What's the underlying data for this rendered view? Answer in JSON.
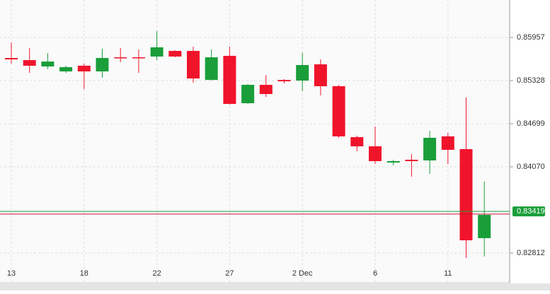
{
  "chart_data": {
    "type": "candlestick",
    "categories": [
      "13",
      null,
      null,
      null,
      "18",
      null,
      null,
      null,
      "22",
      null,
      null,
      null,
      "27",
      null,
      null,
      null,
      "2 Dec",
      null,
      null,
      null,
      "6",
      null,
      null,
      null,
      "11",
      null,
      null
    ],
    "open": [
      0.85658,
      0.85627,
      0.85534,
      0.85462,
      0.85545,
      0.85462,
      0.85668,
      0.85668,
      0.85679,
      0.85761,
      0.85761,
      0.85338,
      0.85689,
      0.84998,
      0.85266,
      0.85338,
      0.85328,
      0.85565,
      0.85246,
      0.84503,
      0.84369,
      0.84132,
      0.84173,
      0.84163,
      0.84514,
      0.84328,
      0.83029
    ],
    "high": [
      0.85885,
      0.85802,
      0.8573,
      0.85545,
      0.85576,
      0.85792,
      0.85802,
      0.85782,
      0.8605,
      0.85771,
      0.85823,
      0.85782,
      0.85823,
      0.85276,
      0.8541,
      0.85349,
      0.8573,
      0.85637,
      0.85266,
      0.84524,
      0.84658,
      0.84173,
      0.84256,
      0.84596,
      0.84565,
      0.85081,
      0.83854
    ],
    "low": [
      0.85576,
      0.85441,
      0.85493,
      0.85441,
      0.85204,
      0.85369,
      0.85596,
      0.85441,
      0.85627,
      0.85668,
      0.85297,
      0.85328,
      0.84977,
      0.84988,
      0.85091,
      0.85287,
      0.85173,
      0.85112,
      0.84493,
      0.84297,
      0.84111,
      0.84091,
      0.83926,
      0.83967,
      0.84111,
      0.8274,
      0.82761
    ],
    "close": [
      0.85637,
      0.85545,
      0.85606,
      0.85524,
      0.85462,
      0.85658,
      0.85658,
      0.85658,
      0.85813,
      0.85679,
      0.85359,
      0.85668,
      0.84988,
      0.85266,
      0.85132,
      0.85318,
      0.85555,
      0.85246,
      0.84514,
      0.84369,
      0.84153,
      0.84153,
      0.84153,
      0.84493,
      0.84318,
      0.82998,
      0.83369
    ],
    "up_color": "#1a9e3a",
    "down_color": "#f0142b",
    "ylim": [
      0.82379,
      0.86504
    ],
    "yticks": [
      0.82812,
      0.8407,
      0.84699,
      0.85328,
      0.85957
    ],
    "tick_labels": [
      "0.82812",
      "0.84070",
      "0.84699",
      "0.85328",
      "0.85957"
    ],
    "last_price": 0.83419,
    "last_price_label": "0.83419",
    "last_price_color": "#1a9e3a",
    "second_price": 0.8338,
    "second_price_color": "#c8102e",
    "grid": true
  }
}
